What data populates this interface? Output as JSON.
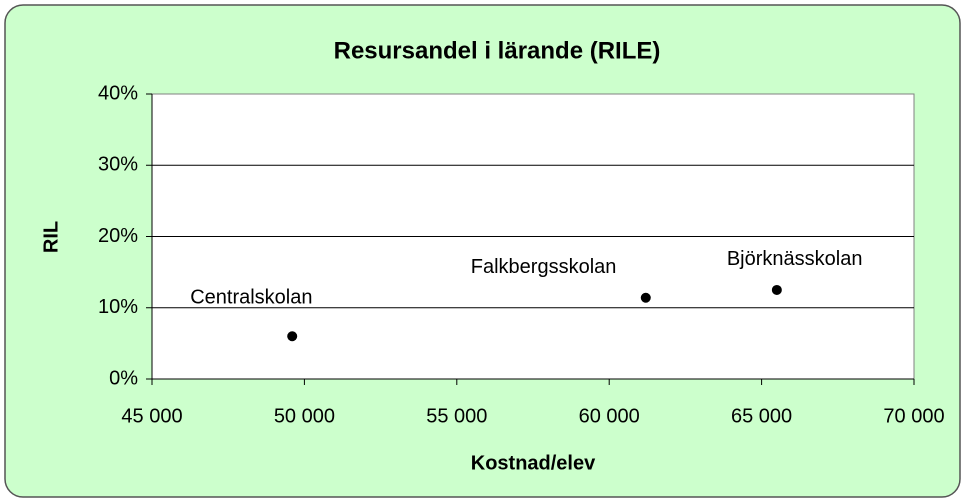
{
  "chart_data": {
    "type": "scatter",
    "title": "Resursandel i lärande (RILE)",
    "x_label": "Kostnad/elev",
    "y_label": "RIL",
    "x": [
      49600,
      61200,
      65500
    ],
    "values": [
      6,
      11.4,
      12.5
    ],
    "labels": [
      "Centralskolan",
      "Falkbergsskolan",
      "Björknässkolan"
    ],
    "color": "#000000",
    "xlim": [
      45000,
      70000
    ],
    "xticks": [
      {
        "value": 45000,
        "label": "45 000"
      },
      {
        "value": 50000,
        "label": "50 000"
      },
      {
        "value": 55000,
        "label": "55 000"
      },
      {
        "value": 60000,
        "label": "60 000"
      },
      {
        "value": 65000,
        "label": "65 000"
      },
      {
        "value": 70000,
        "label": "70 000"
      }
    ],
    "ylim": [
      0,
      40
    ],
    "yticks": [
      {
        "value": 0,
        "label": "0%"
      },
      {
        "value": 10,
        "label": "10%"
      },
      {
        "value": 20,
        "label": "20%"
      },
      {
        "value": 30,
        "label": "30%"
      },
      {
        "value": 40,
        "label": "40%"
      }
    ],
    "grid": true
  }
}
